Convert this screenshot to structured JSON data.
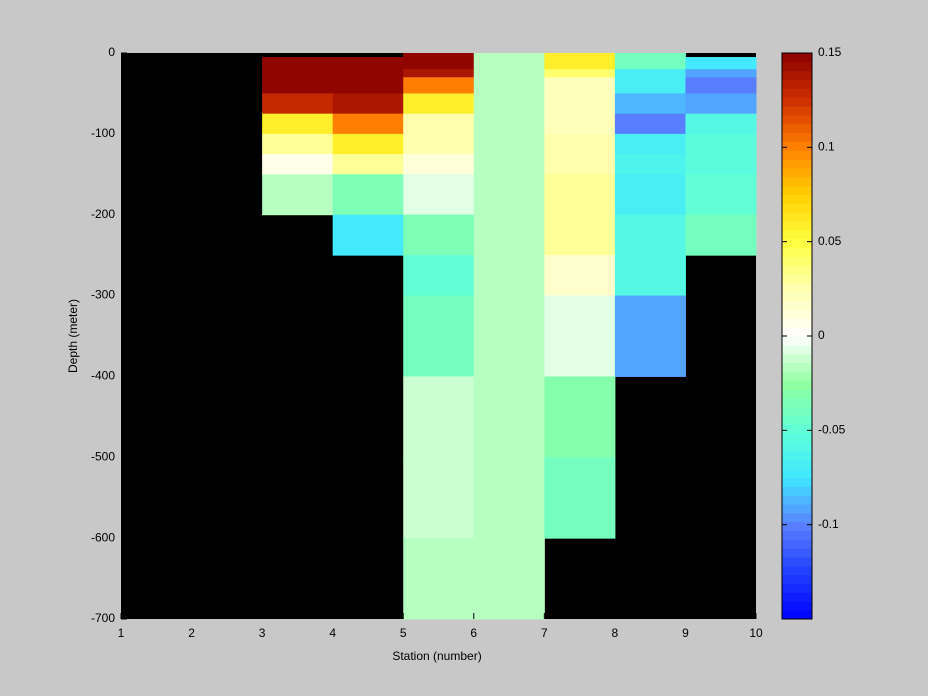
{
  "chart_data": {
    "type": "heatmap",
    "xlabel": "Station (number)",
    "ylabel": "Depth (meter)",
    "x_edges": [
      1,
      2,
      3,
      4,
      5,
      6,
      7,
      8,
      9,
      10
    ],
    "y_edges": [
      0,
      -5,
      -20,
      -30,
      -50,
      -75,
      -100,
      -125,
      -150,
      -200,
      -250,
      -300,
      -400,
      -500,
      -600,
      -700
    ],
    "values": [
      [
        null,
        null,
        null,
        null,
        0.15,
        -0.015,
        0.06,
        -0.04,
        null
      ],
      [
        null,
        null,
        0.15,
        0.15,
        0.15,
        -0.015,
        0.06,
        -0.04,
        -0.075
      ],
      [
        null,
        null,
        0.15,
        0.15,
        0.14,
        -0.015,
        0.04,
        -0.07,
        -0.09
      ],
      [
        null,
        null,
        0.15,
        0.15,
        0.1,
        -0.015,
        0.02,
        -0.07,
        -0.1
      ],
      [
        null,
        null,
        0.13,
        0.14,
        0.06,
        -0.015,
        0.02,
        -0.085,
        -0.09
      ],
      [
        null,
        null,
        0.06,
        0.1,
        0.025,
        -0.015,
        0.02,
        -0.1,
        -0.06
      ],
      [
        null,
        null,
        0.03,
        0.06,
        0.025,
        -0.015,
        0.025,
        -0.07,
        -0.055
      ],
      [
        null,
        null,
        0.005,
        0.03,
        0.01,
        -0.015,
        0.025,
        -0.065,
        -0.055
      ],
      [
        null,
        null,
        -0.015,
        -0.035,
        -0.005,
        -0.015,
        0.03,
        -0.07,
        -0.05
      ],
      [
        null,
        null,
        null,
        -0.075,
        -0.035,
        -0.015,
        0.03,
        -0.06,
        -0.04
      ],
      [
        null,
        null,
        null,
        null,
        -0.05,
        -0.015,
        0.015,
        -0.06,
        null
      ],
      [
        null,
        null,
        null,
        null,
        -0.04,
        -0.015,
        -0.005,
        -0.09,
        null
      ],
      [
        null,
        null,
        null,
        null,
        -0.01,
        -0.015,
        -0.03,
        null,
        null
      ],
      [
        null,
        null,
        null,
        null,
        -0.01,
        -0.015,
        -0.04,
        null,
        null
      ],
      [
        null,
        null,
        null,
        null,
        -0.015,
        -0.015,
        null,
        null,
        null
      ]
    ],
    "xlim": [
      1,
      10
    ],
    "xticks": [
      1,
      2,
      3,
      4,
      5,
      6,
      7,
      8,
      9,
      10
    ],
    "ylim": [
      -700,
      0
    ],
    "yticks": [
      -700,
      -600,
      -500,
      -400,
      -300,
      -200,
      -100,
      0
    ],
    "missing_color": "#000000",
    "clim": [
      -0.15,
      0.15
    ],
    "colormap": [
      "#0000ff",
      "#2040ff",
      "#5a80ff",
      "#40e8ff",
      "#60ffd8",
      "#90ffa0",
      "#ffffff",
      "#ffffb0",
      "#ffff40",
      "#ffd000",
      "#ff8000",
      "#d03000",
      "#8b0000"
    ],
    "colormap_levels": 64,
    "colorbar_ticks": [
      -0.1,
      -0.05,
      0,
      0.05,
      0.1,
      0.15
    ]
  }
}
